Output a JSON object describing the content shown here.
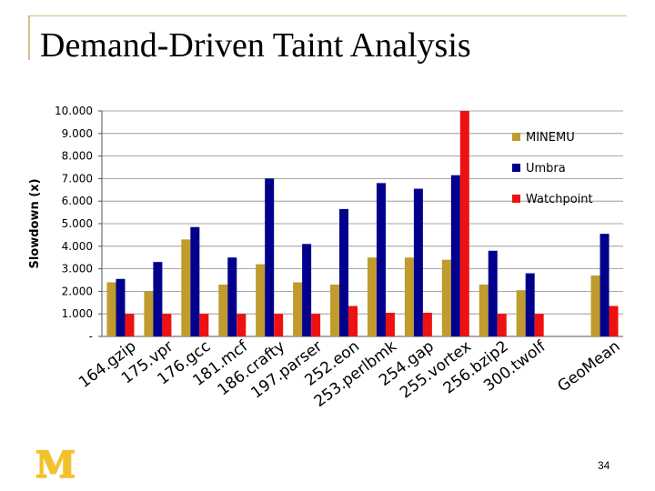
{
  "slide": {
    "title": "Demand-Driven Taint Analysis",
    "page_number": "34",
    "logo_letter": "M",
    "accent_color": "#d1c089",
    "logo_color": "#f2c22e"
  },
  "chart_data": {
    "type": "bar",
    "title": "",
    "xlabel": "",
    "ylabel": "Slowdown (x)",
    "ylim": [
      0,
      10
    ],
    "y_ticks": [
      0,
      1,
      2,
      3,
      4,
      5,
      6,
      7,
      8,
      9,
      10
    ],
    "y_tick_labels": [
      "-",
      "1.000",
      "2.000",
      "3.000",
      "4.000",
      "5.000",
      "6.000",
      "7.000",
      "8.000",
      "9.000",
      "10.000"
    ],
    "grid": true,
    "legend_position": "right",
    "categories": [
      "164.gzip",
      "175.vpr",
      "176.gcc",
      "181.mcf",
      "186.crafty",
      "197.parser",
      "252.eon",
      "253.perlbmk",
      "254.gap",
      "255.vortex",
      "256.bzip2",
      "300.twolf",
      "",
      "GeoMean"
    ],
    "series": [
      {
        "name": "MINEMU",
        "color": "#c09b2e",
        "values": [
          2.4,
          2.0,
          4.3,
          2.3,
          3.2,
          2.4,
          2.3,
          3.5,
          3.5,
          3.4,
          2.3,
          2.05,
          null,
          2.7
        ]
      },
      {
        "name": "Umbra",
        "color": "#00008c",
        "values": [
          2.55,
          3.3,
          4.85,
          3.5,
          7.0,
          4.1,
          5.65,
          6.8,
          6.55,
          7.15,
          3.8,
          2.8,
          null,
          4.55
        ]
      },
      {
        "name": "Watchpoint",
        "color": "#ee1111",
        "values": [
          1.0,
          1.0,
          1.0,
          1.0,
          1.0,
          1.0,
          1.35,
          1.05,
          1.05,
          10.0,
          1.0,
          1.0,
          null,
          1.35
        ]
      }
    ]
  }
}
